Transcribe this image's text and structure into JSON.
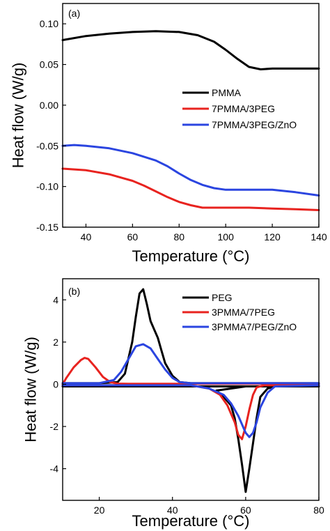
{
  "chart_data": [
    {
      "type": "line",
      "panel_label": "(a)",
      "xlabel": "Temperature (°C)",
      "ylabel": "Heat flow (W/g)",
      "xlim": [
        30,
        140
      ],
      "ylim": [
        -0.15,
        0.125
      ],
      "xticks": [
        40,
        60,
        80,
        100,
        120,
        140
      ],
      "xtick_labels": [
        "40",
        "60",
        "80",
        "100",
        "120",
        "140"
      ],
      "yticks": [
        -0.15,
        -0.1,
        -0.05,
        0.0,
        0.05,
        0.1
      ],
      "ytick_labels": [
        "-0.15",
        "-0.10",
        "-0.05",
        "0.00",
        "0.05",
        "0.10"
      ],
      "legend_position": "center-right",
      "series": [
        {
          "name": "PMMA",
          "color": "#000000",
          "x": [
            30,
            40,
            50,
            60,
            70,
            80,
            88,
            95,
            100,
            105,
            110,
            115,
            120,
            130,
            140
          ],
          "y": [
            0.08,
            0.085,
            0.088,
            0.09,
            0.091,
            0.09,
            0.086,
            0.078,
            0.068,
            0.057,
            0.047,
            0.044,
            0.045,
            0.045,
            0.045
          ]
        },
        {
          "name": "7PMMA/3PEG",
          "color": "#e8231f",
          "x": [
            30,
            40,
            50,
            60,
            65,
            70,
            75,
            80,
            85,
            90,
            100,
            110,
            120,
            130,
            140
          ],
          "y": [
            -0.078,
            -0.08,
            -0.085,
            -0.093,
            -0.099,
            -0.106,
            -0.113,
            -0.119,
            -0.123,
            -0.126,
            -0.126,
            -0.126,
            -0.127,
            -0.128,
            -0.129
          ]
        },
        {
          "name": "7PMMA/3PEG/ZnO",
          "color": "#2b45e0",
          "x": [
            30,
            35,
            40,
            50,
            60,
            70,
            75,
            80,
            85,
            90,
            95,
            100,
            110,
            120,
            130,
            140
          ],
          "y": [
            -0.05,
            -0.049,
            -0.05,
            -0.053,
            -0.059,
            -0.068,
            -0.075,
            -0.084,
            -0.092,
            -0.098,
            -0.102,
            -0.104,
            -0.104,
            -0.104,
            -0.107,
            -0.111
          ]
        }
      ]
    },
    {
      "type": "line",
      "panel_label": "(b)",
      "xlabel": "Temperature (°C)",
      "ylabel": "Heat flow (W/g)",
      "xlim": [
        10,
        80
      ],
      "ylim": [
        -5.5,
        5.0
      ],
      "xticks": [
        20,
        40,
        60,
        80
      ],
      "xtick_labels": [
        "20",
        "40",
        "60",
        "80"
      ],
      "yticks": [
        -4,
        -2,
        0,
        2,
        4
      ],
      "ytick_labels": [
        "-4",
        "-2",
        "0",
        "2",
        "4"
      ],
      "legend_position": "top-right",
      "series": [
        {
          "name": "PEG",
          "color": "#000000",
          "segments": [
            {
              "x": [
                10,
                20,
                25,
                27,
                29,
                30,
                31,
                32,
                33,
                34,
                35,
                36,
                37,
                38,
                40,
                42,
                45,
                80
              ],
              "y": [
                0.05,
                0.05,
                0.1,
                0.5,
                2.0,
                3.2,
                4.3,
                4.5,
                3.8,
                3.0,
                2.6,
                2.2,
                1.6,
                1.0,
                0.4,
                0.1,
                0.05,
                0.05
              ]
            },
            {
              "x": [
                80,
                60,
                52,
                54,
                56,
                57,
                58,
                59,
                60,
                61,
                62,
                63,
                64,
                66,
                68,
                10
              ],
              "y": [
                -0.1,
                -0.1,
                -0.3,
                -0.6,
                -1.0,
                -1.6,
                -2.6,
                -3.8,
                -5.1,
                -4.0,
                -2.8,
                -1.6,
                -0.6,
                -0.2,
                -0.1,
                -0.1
              ]
            }
          ]
        },
        {
          "name": "3PMMA/7PEG",
          "color": "#e8231f",
          "segments": [
            {
              "x": [
                10,
                11,
                13,
                15,
                16,
                17,
                19,
                21,
                23,
                25,
                28,
                80
              ],
              "y": [
                0.0,
                0.3,
                0.8,
                1.15,
                1.25,
                1.2,
                0.8,
                0.35,
                0.1,
                0.03,
                0.02,
                0.02
              ]
            },
            {
              "x": [
                10,
                45,
                50,
                53,
                55,
                57,
                58,
                59,
                60,
                61,
                62,
                63,
                65,
                80
              ],
              "y": [
                -0.05,
                -0.05,
                -0.2,
                -0.5,
                -1.0,
                -1.8,
                -2.4,
                -2.6,
                -2.0,
                -1.2,
                -0.5,
                -0.15,
                -0.05,
                -0.05
              ]
            }
          ]
        },
        {
          "name": "3PMMA7/PEG/ZnO",
          "color": "#2b45e0",
          "segments": [
            {
              "x": [
                10,
                20,
                24,
                26,
                28,
                30,
                32,
                34,
                36,
                38,
                40,
                42,
                45,
                80
              ],
              "y": [
                0.05,
                0.05,
                0.2,
                0.6,
                1.2,
                1.8,
                1.9,
                1.7,
                1.2,
                0.7,
                0.3,
                0.1,
                0.05,
                0.05
              ]
            },
            {
              "x": [
                10,
                45,
                50,
                54,
                56,
                58,
                60,
                61,
                62,
                63,
                64,
                66,
                68,
                80
              ],
              "y": [
                -0.05,
                -0.05,
                -0.2,
                -0.5,
                -0.9,
                -1.5,
                -2.3,
                -2.5,
                -2.3,
                -1.8,
                -1.1,
                -0.4,
                -0.1,
                -0.05
              ]
            }
          ]
        }
      ]
    }
  ]
}
